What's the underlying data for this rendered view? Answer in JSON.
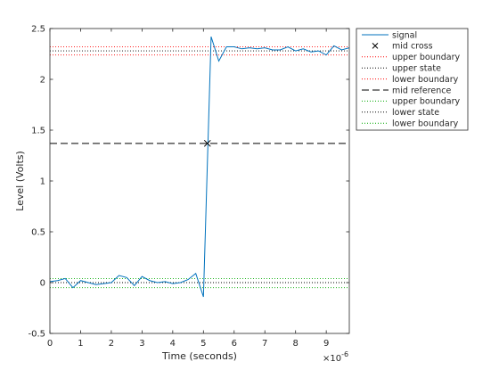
{
  "chart_data": {
    "type": "line",
    "xlabel": "Time (seconds)",
    "ylabel": "Level (Volts)",
    "x_exponent_label": "×10",
    "x_exponent_power": "-6",
    "xlim": [
      0,
      9.75
    ],
    "ylim": [
      -0.5,
      2.5
    ],
    "x_ticks": [
      0,
      1,
      2,
      3,
      4,
      5,
      6,
      7,
      8,
      9
    ],
    "y_ticks": [
      -0.5,
      0,
      0.5,
      1,
      1.5,
      2,
      2.5
    ],
    "x_tick_labels": [
      "0",
      "1",
      "2",
      "3",
      "4",
      "5",
      "6",
      "7",
      "8",
      "9"
    ],
    "y_tick_labels": [
      "-0.5",
      "0",
      "0.5",
      "1",
      "1.5",
      "2",
      "2.5"
    ],
    "grid": false,
    "legend_position": "outside-top-right",
    "signal": {
      "name": "signal",
      "color": "#0072BD",
      "x": [
        0,
        0.25,
        0.5,
        0.75,
        1.0,
        1.25,
        1.5,
        1.75,
        2.0,
        2.25,
        2.5,
        2.75,
        3.0,
        3.25,
        3.5,
        3.75,
        4.0,
        4.25,
        4.5,
        4.75,
        5.0,
        5.25,
        5.5,
        5.75,
        6.0,
        6.25,
        6.5,
        6.75,
        7.0,
        7.25,
        7.5,
        7.75,
        8.0,
        8.25,
        8.5,
        8.75,
        9.0,
        9.25,
        9.5,
        9.75
      ],
      "y": [
        0.01,
        0.02,
        0.04,
        -0.05,
        0.02,
        0.0,
        -0.02,
        -0.01,
        0.0,
        0.07,
        0.05,
        -0.03,
        0.06,
        0.02,
        0.0,
        0.01,
        -0.01,
        0.0,
        0.03,
        0.09,
        -0.14,
        2.42,
        2.18,
        2.32,
        2.32,
        2.3,
        2.31,
        2.3,
        2.31,
        2.29,
        2.29,
        2.32,
        2.28,
        2.3,
        2.27,
        2.28,
        2.24,
        2.33,
        2.29,
        2.31
      ]
    },
    "mid_cross": {
      "name": "mid cross",
      "x": 5.13,
      "y": 1.37,
      "color": "#000000"
    },
    "lines": [
      {
        "name": "upper boundary",
        "y": 2.32,
        "style": "dotted",
        "color": "#FF0000"
      },
      {
        "name": "upper state",
        "y": 2.28,
        "style": "dotted",
        "color": "#000000"
      },
      {
        "name": "lower boundary",
        "y": 2.24,
        "style": "dotted",
        "color": "#FF0000"
      },
      {
        "name": "mid reference",
        "y": 1.37,
        "style": "dashed",
        "color": "#000000"
      },
      {
        "name": "upper boundary",
        "y": 0.04,
        "style": "dotted",
        "color": "#00AA00"
      },
      {
        "name": "lower state",
        "y": 0.0,
        "style": "dotted",
        "color": "#000000"
      },
      {
        "name": "lower boundary",
        "y": -0.05,
        "style": "dotted",
        "color": "#00AA00"
      }
    ],
    "legend": [
      {
        "label": "signal",
        "kind": "line-solid",
        "color": "#0072BD"
      },
      {
        "label": "mid cross",
        "kind": "marker-x",
        "color": "#000000"
      },
      {
        "label": "upper boundary",
        "kind": "line-dotted",
        "color": "#FF0000"
      },
      {
        "label": "upper state",
        "kind": "line-dotted",
        "color": "#000000"
      },
      {
        "label": "lower boundary",
        "kind": "line-dotted",
        "color": "#FF0000"
      },
      {
        "label": "mid reference",
        "kind": "line-dashed",
        "color": "#000000"
      },
      {
        "label": "upper boundary",
        "kind": "line-dotted",
        "color": "#00AA00"
      },
      {
        "label": "lower state",
        "kind": "line-dotted",
        "color": "#000000"
      },
      {
        "label": "lower boundary",
        "kind": "line-dotted",
        "color": "#00AA00"
      }
    ]
  }
}
